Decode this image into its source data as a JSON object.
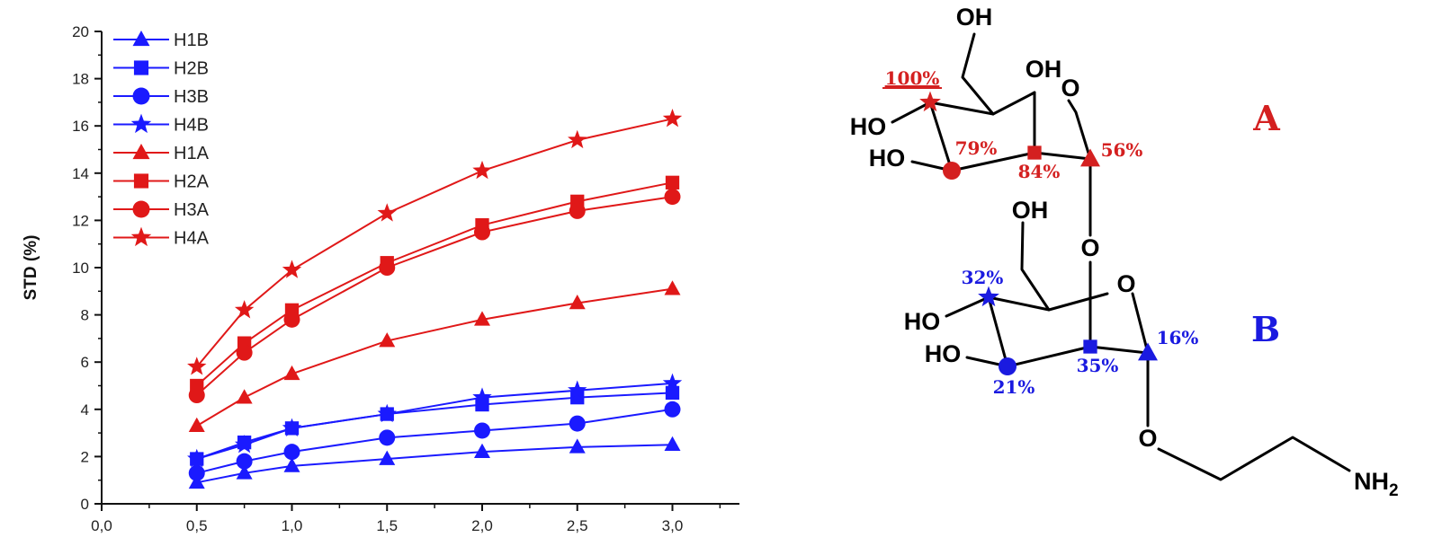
{
  "chart_data": {
    "type": "line",
    "x": [
      0.5,
      0.75,
      1.0,
      1.5,
      2.0,
      2.5,
      3.0
    ],
    "xlim": [
      0,
      3.25
    ],
    "ylim": [
      0,
      20
    ],
    "xticks": [
      "0,0",
      "0,5",
      "1,0",
      "1,5",
      "2,0",
      "2,5",
      "3,0"
    ],
    "yticks": [
      "0",
      "2",
      "4",
      "6",
      "8",
      "10",
      "12",
      "14",
      "16",
      "18",
      "20"
    ],
    "ylabel": "STD (%)",
    "xlabel": "",
    "grid": false,
    "legend_position": "top-left",
    "series": [
      {
        "name": "H1B",
        "color": "#1a1aff",
        "marker": "triangle",
        "values": [
          0.9,
          1.3,
          1.6,
          1.9,
          2.2,
          2.4,
          2.5
        ]
      },
      {
        "name": "H2B",
        "color": "#1a1aff",
        "marker": "square",
        "values": [
          1.9,
          2.6,
          3.2,
          3.8,
          4.2,
          4.5,
          4.7
        ]
      },
      {
        "name": "H3B",
        "color": "#1a1aff",
        "marker": "circle",
        "values": [
          1.3,
          1.8,
          2.2,
          2.8,
          3.1,
          3.4,
          4.0
        ]
      },
      {
        "name": "H4B",
        "color": "#1a1aff",
        "marker": "star",
        "values": [
          1.9,
          2.5,
          3.2,
          3.8,
          4.5,
          4.8,
          5.1
        ]
      },
      {
        "name": "H1A",
        "color": "#e01818",
        "marker": "triangle",
        "values": [
          3.3,
          4.5,
          5.5,
          6.9,
          7.8,
          8.5,
          9.1
        ]
      },
      {
        "name": "H2A",
        "color": "#e01818",
        "marker": "square",
        "values": [
          5.0,
          6.8,
          8.2,
          10.2,
          11.8,
          12.8,
          13.6
        ]
      },
      {
        "name": "H3A",
        "color": "#e01818",
        "marker": "circle",
        "values": [
          4.6,
          6.4,
          7.8,
          10.0,
          11.5,
          12.4,
          13.0
        ]
      },
      {
        "name": "H4A",
        "color": "#e01818",
        "marker": "star",
        "values": [
          5.8,
          8.2,
          9.9,
          12.3,
          14.1,
          15.4,
          16.3
        ]
      }
    ]
  },
  "diagram": {
    "colors": {
      "ring_a": "#d42020",
      "ring_b": "#1a1ae0"
    },
    "ring_labels": {
      "a": "A",
      "b": "B"
    },
    "atoms": {
      "oh_top": "OH",
      "oh_a_c3": "OH",
      "o_ring_a": "O",
      "ho_a_c4": "HO",
      "ho_a_c3": "HO",
      "oh_b_c6": "OH",
      "o_link": "O",
      "o_ring_b": "O",
      "ho_b_c4": "HO",
      "ho_b_c3": "HO",
      "o_glycosidic": "O",
      "nh2_main": "NH",
      "nh2_sub": "2"
    },
    "percentages": {
      "a_h4": "100%",
      "a_h3": "79%",
      "a_h2": "84%",
      "a_h1": "56%",
      "b_h4": "32%",
      "b_h3": "21%",
      "b_h2": "35%",
      "b_h1": "16%"
    }
  }
}
